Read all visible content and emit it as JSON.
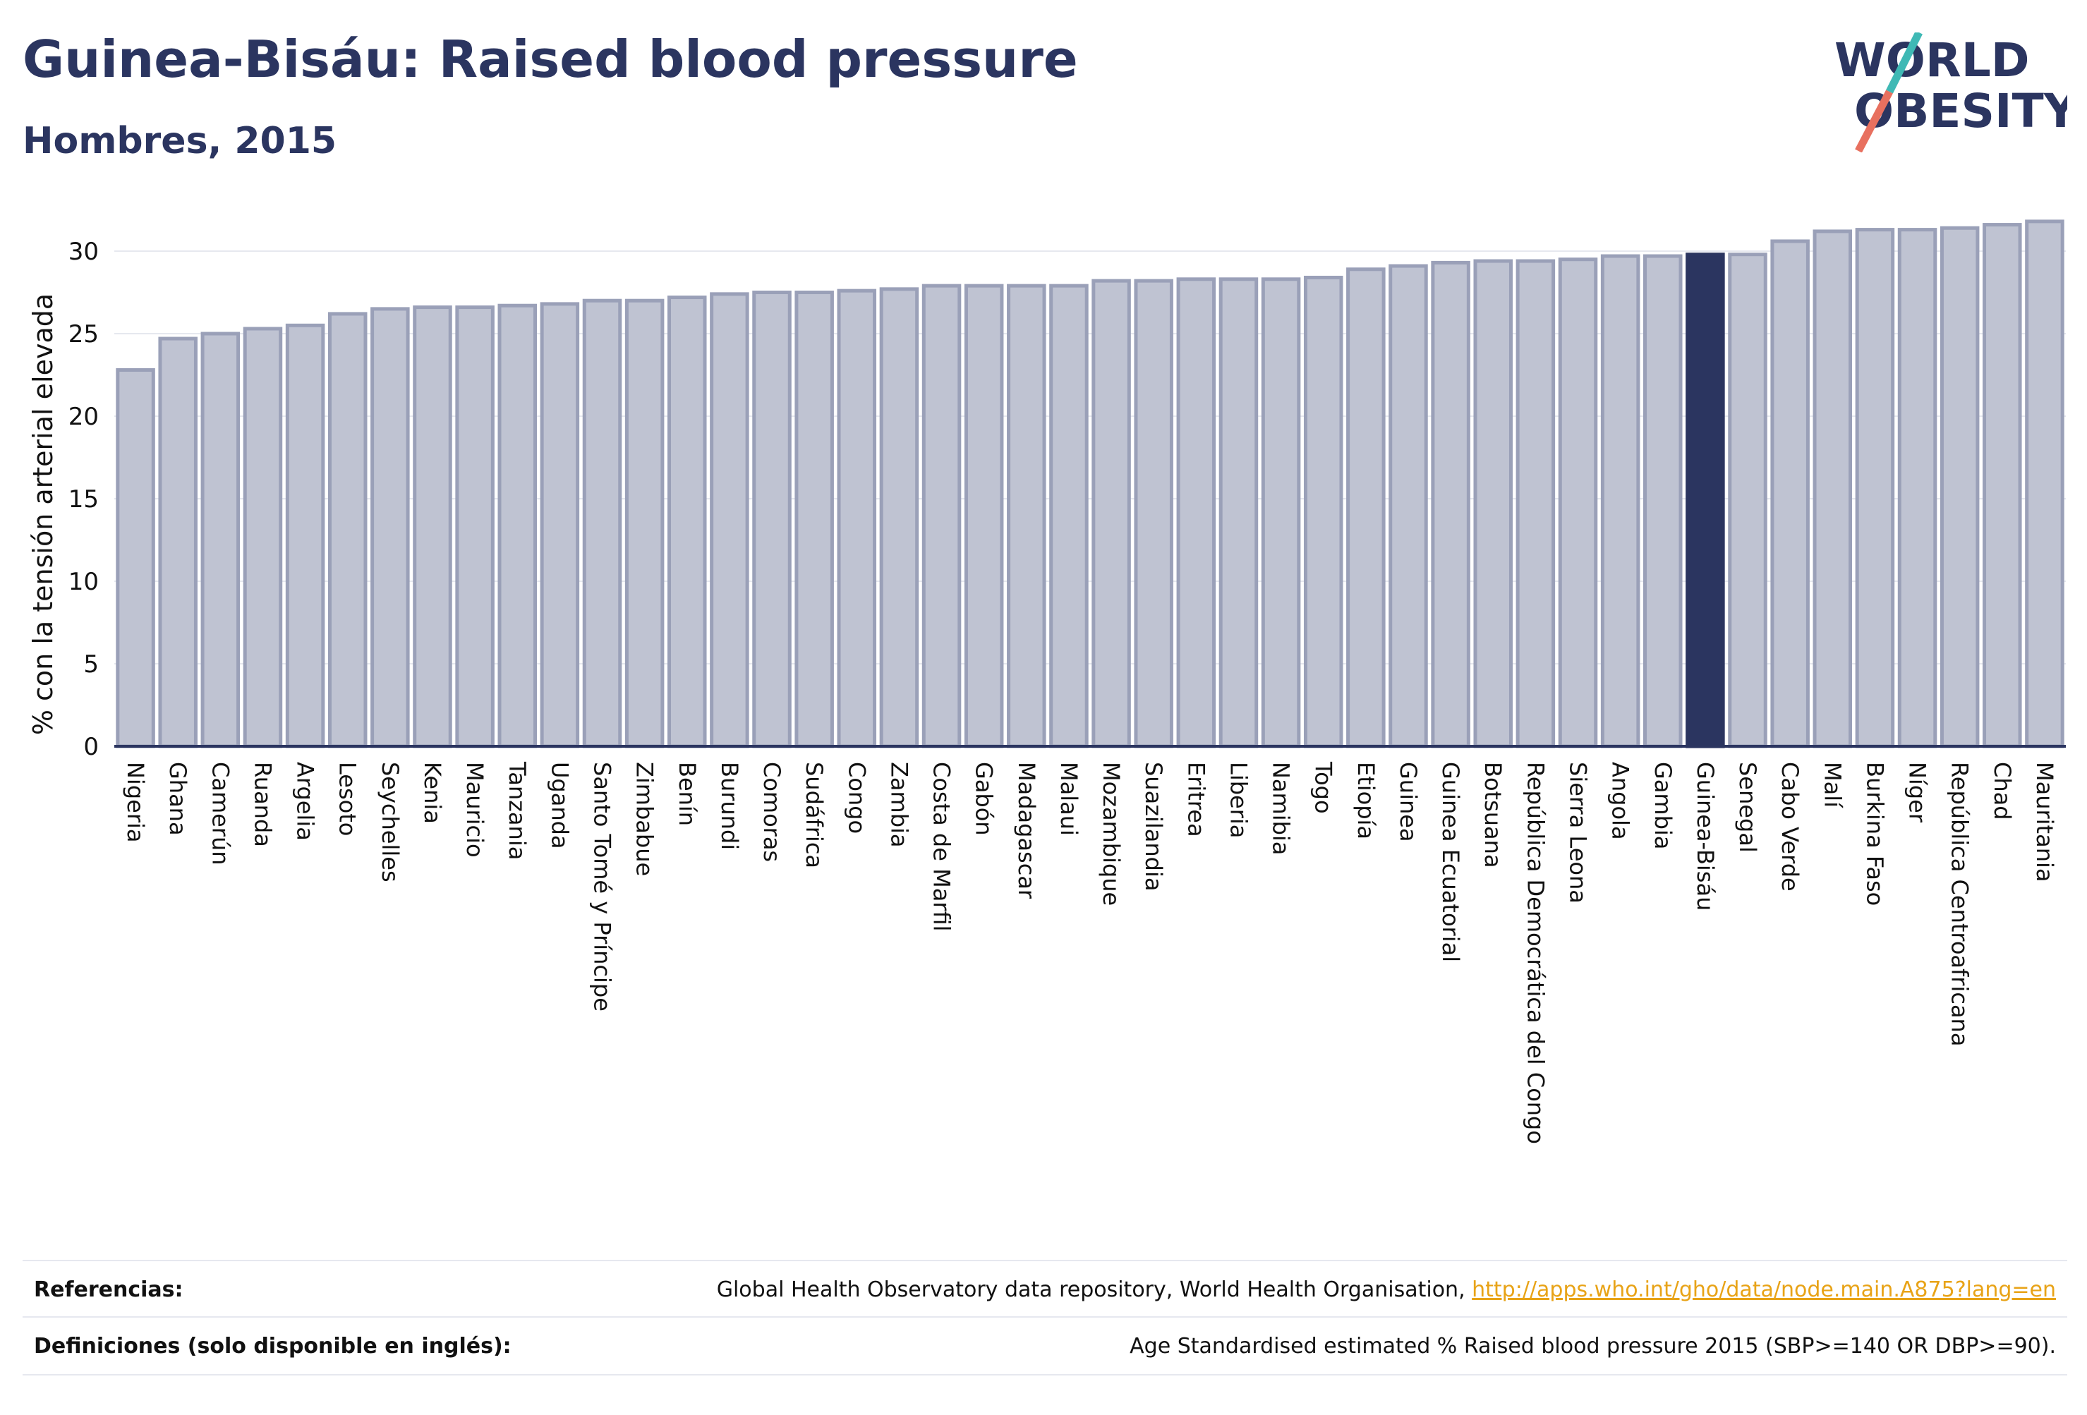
{
  "header": {
    "title": "Guinea-Bisáu: Raised blood pressure",
    "subtitle": "Hombres, 2015",
    "logo_text_1": "WORLD",
    "logo_text_2": "OBESITY"
  },
  "colors": {
    "title": "#2b3560",
    "bar": "#bfc3d2",
    "bar_border": "#9aa0b8",
    "highlight": "#2b3560",
    "axis": "#2b3560",
    "grid": "#e6e8ef",
    "link": "#e8a317",
    "logo_teal": "#3fb9b5",
    "logo_coral": "#e8705f"
  },
  "chart_data": {
    "type": "bar",
    "title": "Guinea-Bisáu: Raised blood pressure",
    "subtitle": "Hombres, 2015",
    "xlabel": "",
    "ylabel": "% con la tensión arterial elevada",
    "ylim": [
      0,
      33
    ],
    "yticks": [
      0,
      5,
      10,
      15,
      20,
      25,
      30
    ],
    "grid": true,
    "highlight": "Guinea-Bisáu",
    "categories": [
      "Nigeria",
      "Ghana",
      "Camerún",
      "Ruanda",
      "Argelia",
      "Lesoto",
      "Seychelles",
      "Kenia",
      "Mauricio",
      "Tanzania",
      "Uganda",
      "Santo Tomé y Príncipe",
      "Zimbabue",
      "Benín",
      "Burundi",
      "Comoras",
      "Sudáfrica",
      "Congo",
      "Zambia",
      "Costa de Marfil",
      "Gabón",
      "Madagascar",
      "Malaui",
      "Mozambique",
      "Suazilandia",
      "Eritrea",
      "Liberia",
      "Namibia",
      "Togo",
      "Etiopía",
      "Guinea",
      "Guinea Ecuatorial",
      "Botsuana",
      "República Democrática del Congo",
      "Sierra Leona",
      "Angola",
      "Gambia",
      "Guinea-Bisáu",
      "Senegal",
      "Cabo Verde",
      "Malí",
      "Burkina Faso",
      "Níger",
      "República Centroafricana",
      "Chad",
      "Mauritania"
    ],
    "values": [
      22.8,
      24.7,
      25.0,
      25.3,
      25.5,
      26.2,
      26.5,
      26.6,
      26.6,
      26.7,
      26.8,
      27.0,
      27.0,
      27.2,
      27.4,
      27.5,
      27.5,
      27.6,
      27.7,
      27.9,
      27.9,
      27.9,
      27.9,
      28.2,
      28.2,
      28.3,
      28.3,
      28.3,
      28.4,
      28.9,
      29.1,
      29.3,
      29.4,
      29.4,
      29.5,
      29.7,
      29.7,
      29.8,
      29.8,
      30.6,
      31.2,
      31.3,
      31.3,
      31.4,
      31.6,
      31.8
    ]
  },
  "footer": {
    "references_label": "Referencias:",
    "references_text": "Global Health Observatory data repository, World Health Organisation, ",
    "references_link": "http://apps.who.int/gho/data/node.main.A875?lang=en",
    "definitions_label": "Definiciones (solo disponible en inglés):",
    "definitions_text": "Age Standardised estimated % Raised blood pressure 2015 (SBP>=140 OR DBP>=90)."
  }
}
